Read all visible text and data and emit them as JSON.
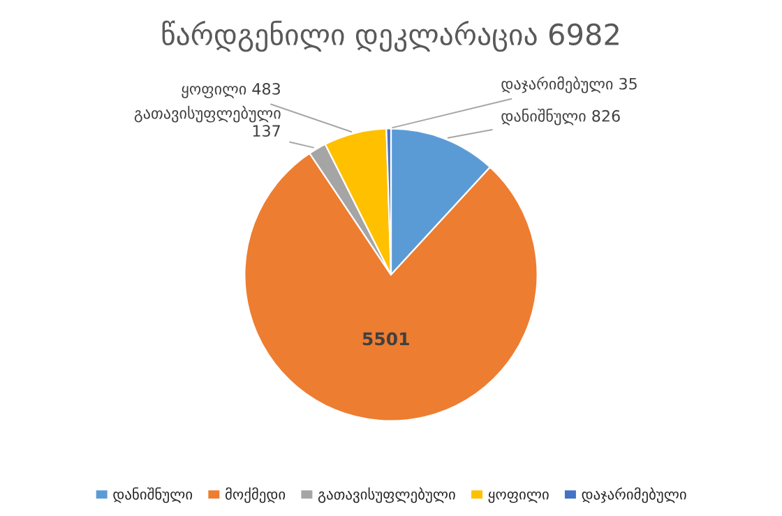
{
  "chart_data": {
    "type": "pie",
    "title": "წარდგენილი დეკლარაცია 6982",
    "categories": [
      "დანიშნული",
      "მოქმედი",
      "გათავისუფლებული",
      "ყოფილი",
      "დაჯარიმებული"
    ],
    "values": [
      826,
      5501,
      137,
      483,
      35
    ],
    "colors": [
      "#5b9bd5",
      "#ed7d31",
      "#a5a5a5",
      "#ffc000",
      "#4472c4"
    ],
    "value_labels": [
      "დანიშნული 826",
      "5501",
      "გათავისუფლებული\n137",
      "ყოფილი 483",
      "დაჯარიმებული 35"
    ],
    "legend": "bottom"
  }
}
